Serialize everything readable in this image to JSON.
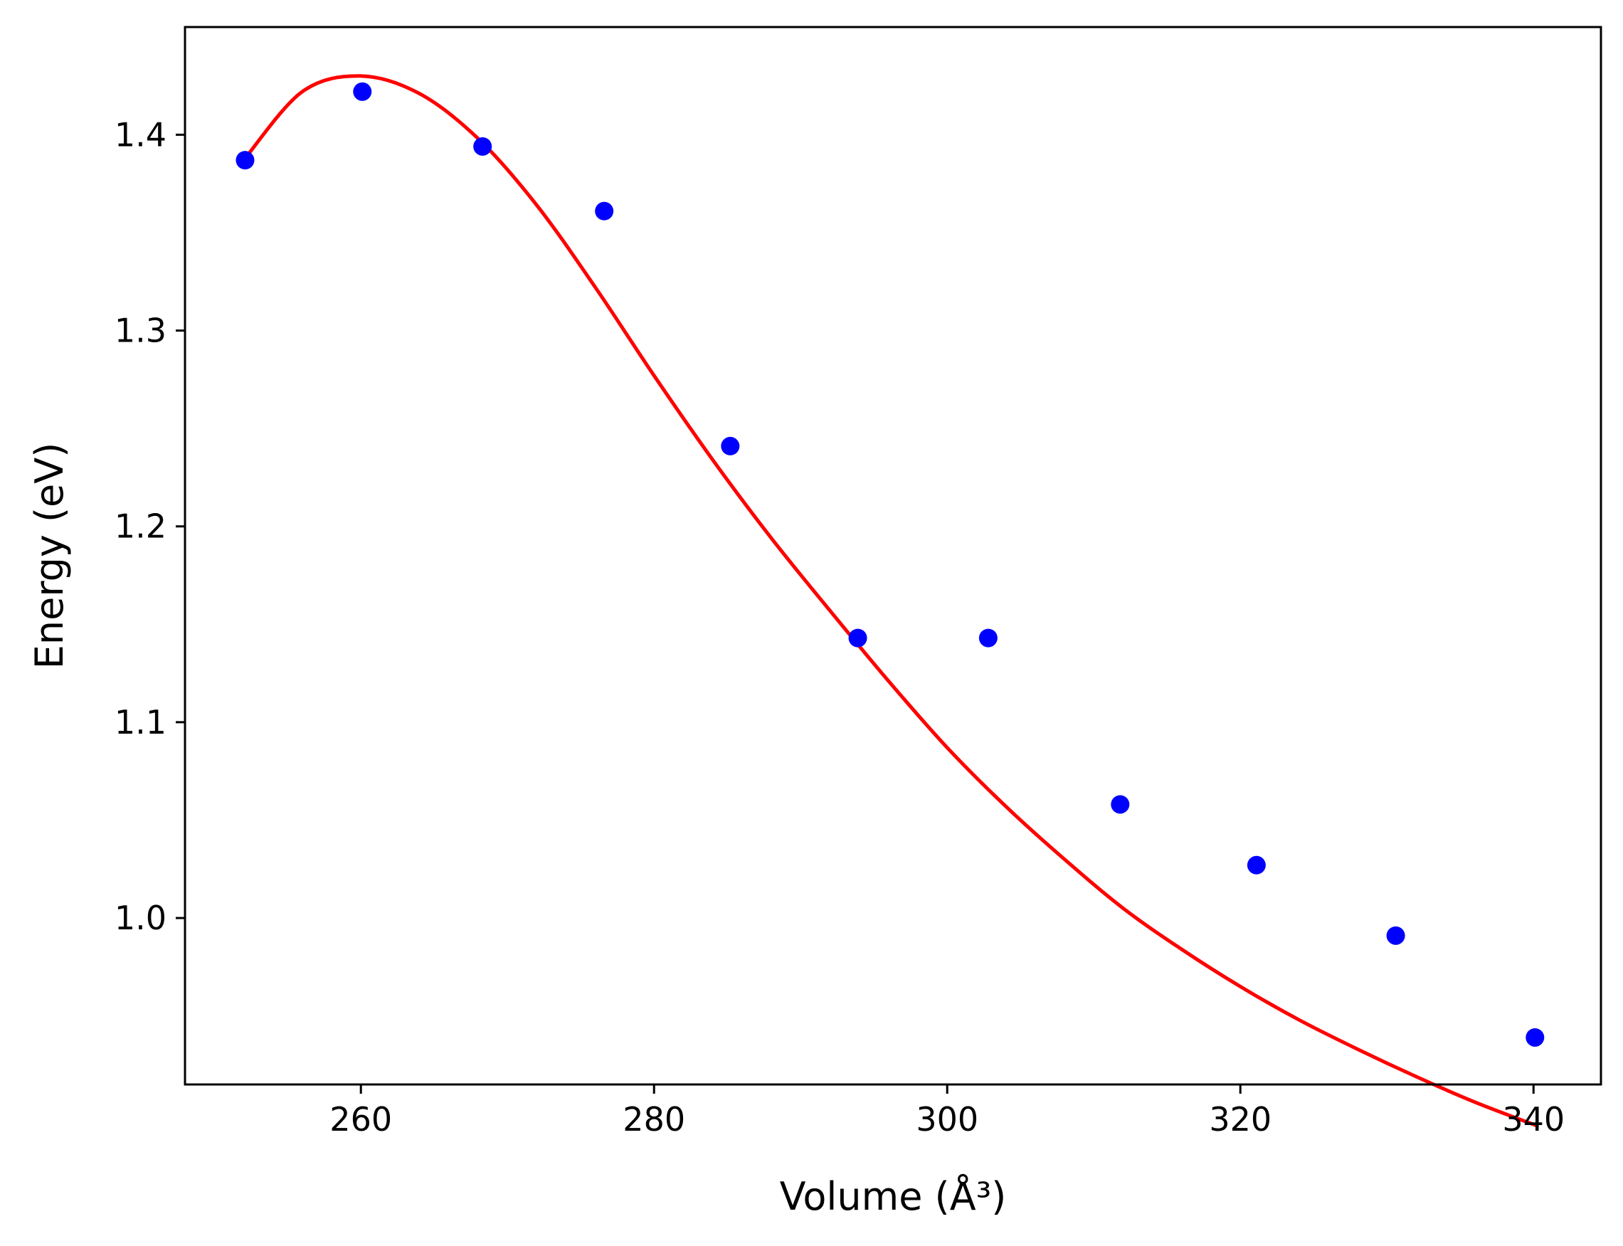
{
  "chart_data": {
    "type": "scatter",
    "title": "",
    "xlabel": "Volume (Å³)",
    "ylabel": "Energy (eV)",
    "xlim": [
      248,
      344.6
    ],
    "ylim": [
      0.915,
      1.455
    ],
    "xticks": [
      260,
      280,
      300,
      320,
      340
    ],
    "xtick_labels": [
      "260",
      "280",
      "300",
      "320",
      "340"
    ],
    "yticks": [
      1.0,
      1.1,
      1.2,
      1.3,
      1.4
    ],
    "ytick_labels": [
      "1.0",
      "1.1",
      "1.2",
      "1.3",
      "1.4"
    ],
    "grid": false,
    "legend": "none",
    "series": [
      {
        "kind": "points",
        "color": "#0000ff",
        "x": [
          252.1,
          260.1,
          268.3,
          276.6,
          285.2,
          293.9,
          302.8,
          311.8,
          321.1,
          330.6,
          340.1
        ],
        "y": [
          1.387,
          1.422,
          1.394,
          1.361,
          1.241,
          1.143,
          1.143,
          1.058,
          1.027,
          0.991,
          0.939
        ]
      },
      {
        "kind": "fit-line",
        "color": "#ff0000",
        "x": [
          252.1,
          256.0,
          260.0,
          264.0,
          268.0,
          272.0,
          276.0,
          280.0,
          284.0,
          288.0,
          292.0,
          296.0,
          300.0,
          304.0,
          308.0,
          312.0,
          316.0,
          320.0,
          324.0,
          328.0,
          332.0,
          336.0,
          340.2
        ],
        "y": [
          1.388,
          1.422,
          1.43,
          1.421,
          1.398,
          1.364,
          1.322,
          1.277,
          1.234,
          1.194,
          1.157,
          1.121,
          1.087,
          1.057,
          1.03,
          1.005,
          0.984,
          0.965,
          0.948,
          0.933,
          0.919,
          0.906,
          0.894
        ]
      }
    ]
  }
}
